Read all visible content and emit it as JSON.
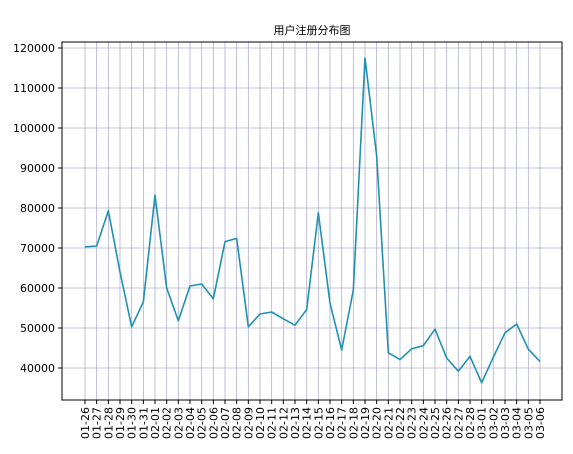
{
  "chart_data": {
    "type": "line",
    "title": "用户注册分布图",
    "xlabel": "",
    "ylabel": "",
    "x": [
      "01-26",
      "01-27",
      "01-28",
      "01-29",
      "01-30",
      "01-31",
      "02-01",
      "02-02",
      "02-03",
      "02-04",
      "02-05",
      "02-06",
      "02-07",
      "02-08",
      "02-09",
      "02-10",
      "02-11",
      "02-12",
      "02-13",
      "02-14",
      "02-15",
      "02-16",
      "02-17",
      "02-18",
      "02-19",
      "02-20",
      "02-21",
      "02-22",
      "02-23",
      "02-24",
      "02-25",
      "02-26",
      "02-27",
      "02-28",
      "03-01",
      "03-02",
      "03-03",
      "03-04",
      "03-05",
      "03-06"
    ],
    "series": [
      {
        "name": "",
        "values": [
          70300,
          70500,
          79300,
          64000,
          50300,
          56500,
          83200,
          60000,
          51800,
          60500,
          61000,
          57300,
          71600,
          72400,
          50300,
          53500,
          54000,
          52300,
          50700,
          54600,
          78800,
          56200,
          44500,
          59500,
          117500,
          93000,
          43800,
          42100,
          44800,
          45600,
          49700,
          42500,
          39200,
          42900,
          36300,
          42700,
          48800,
          51000,
          44700,
          41600
        ]
      }
    ],
    "yticks": [
      40000,
      50000,
      60000,
      70000,
      80000,
      90000,
      100000,
      110000,
      120000
    ],
    "ylim": [
      32000,
      121500
    ],
    "grid": true,
    "legend": "none",
    "line_color": "#1f90b4",
    "grid_color": "#b0b0cc",
    "axis_color": "#000000"
  }
}
